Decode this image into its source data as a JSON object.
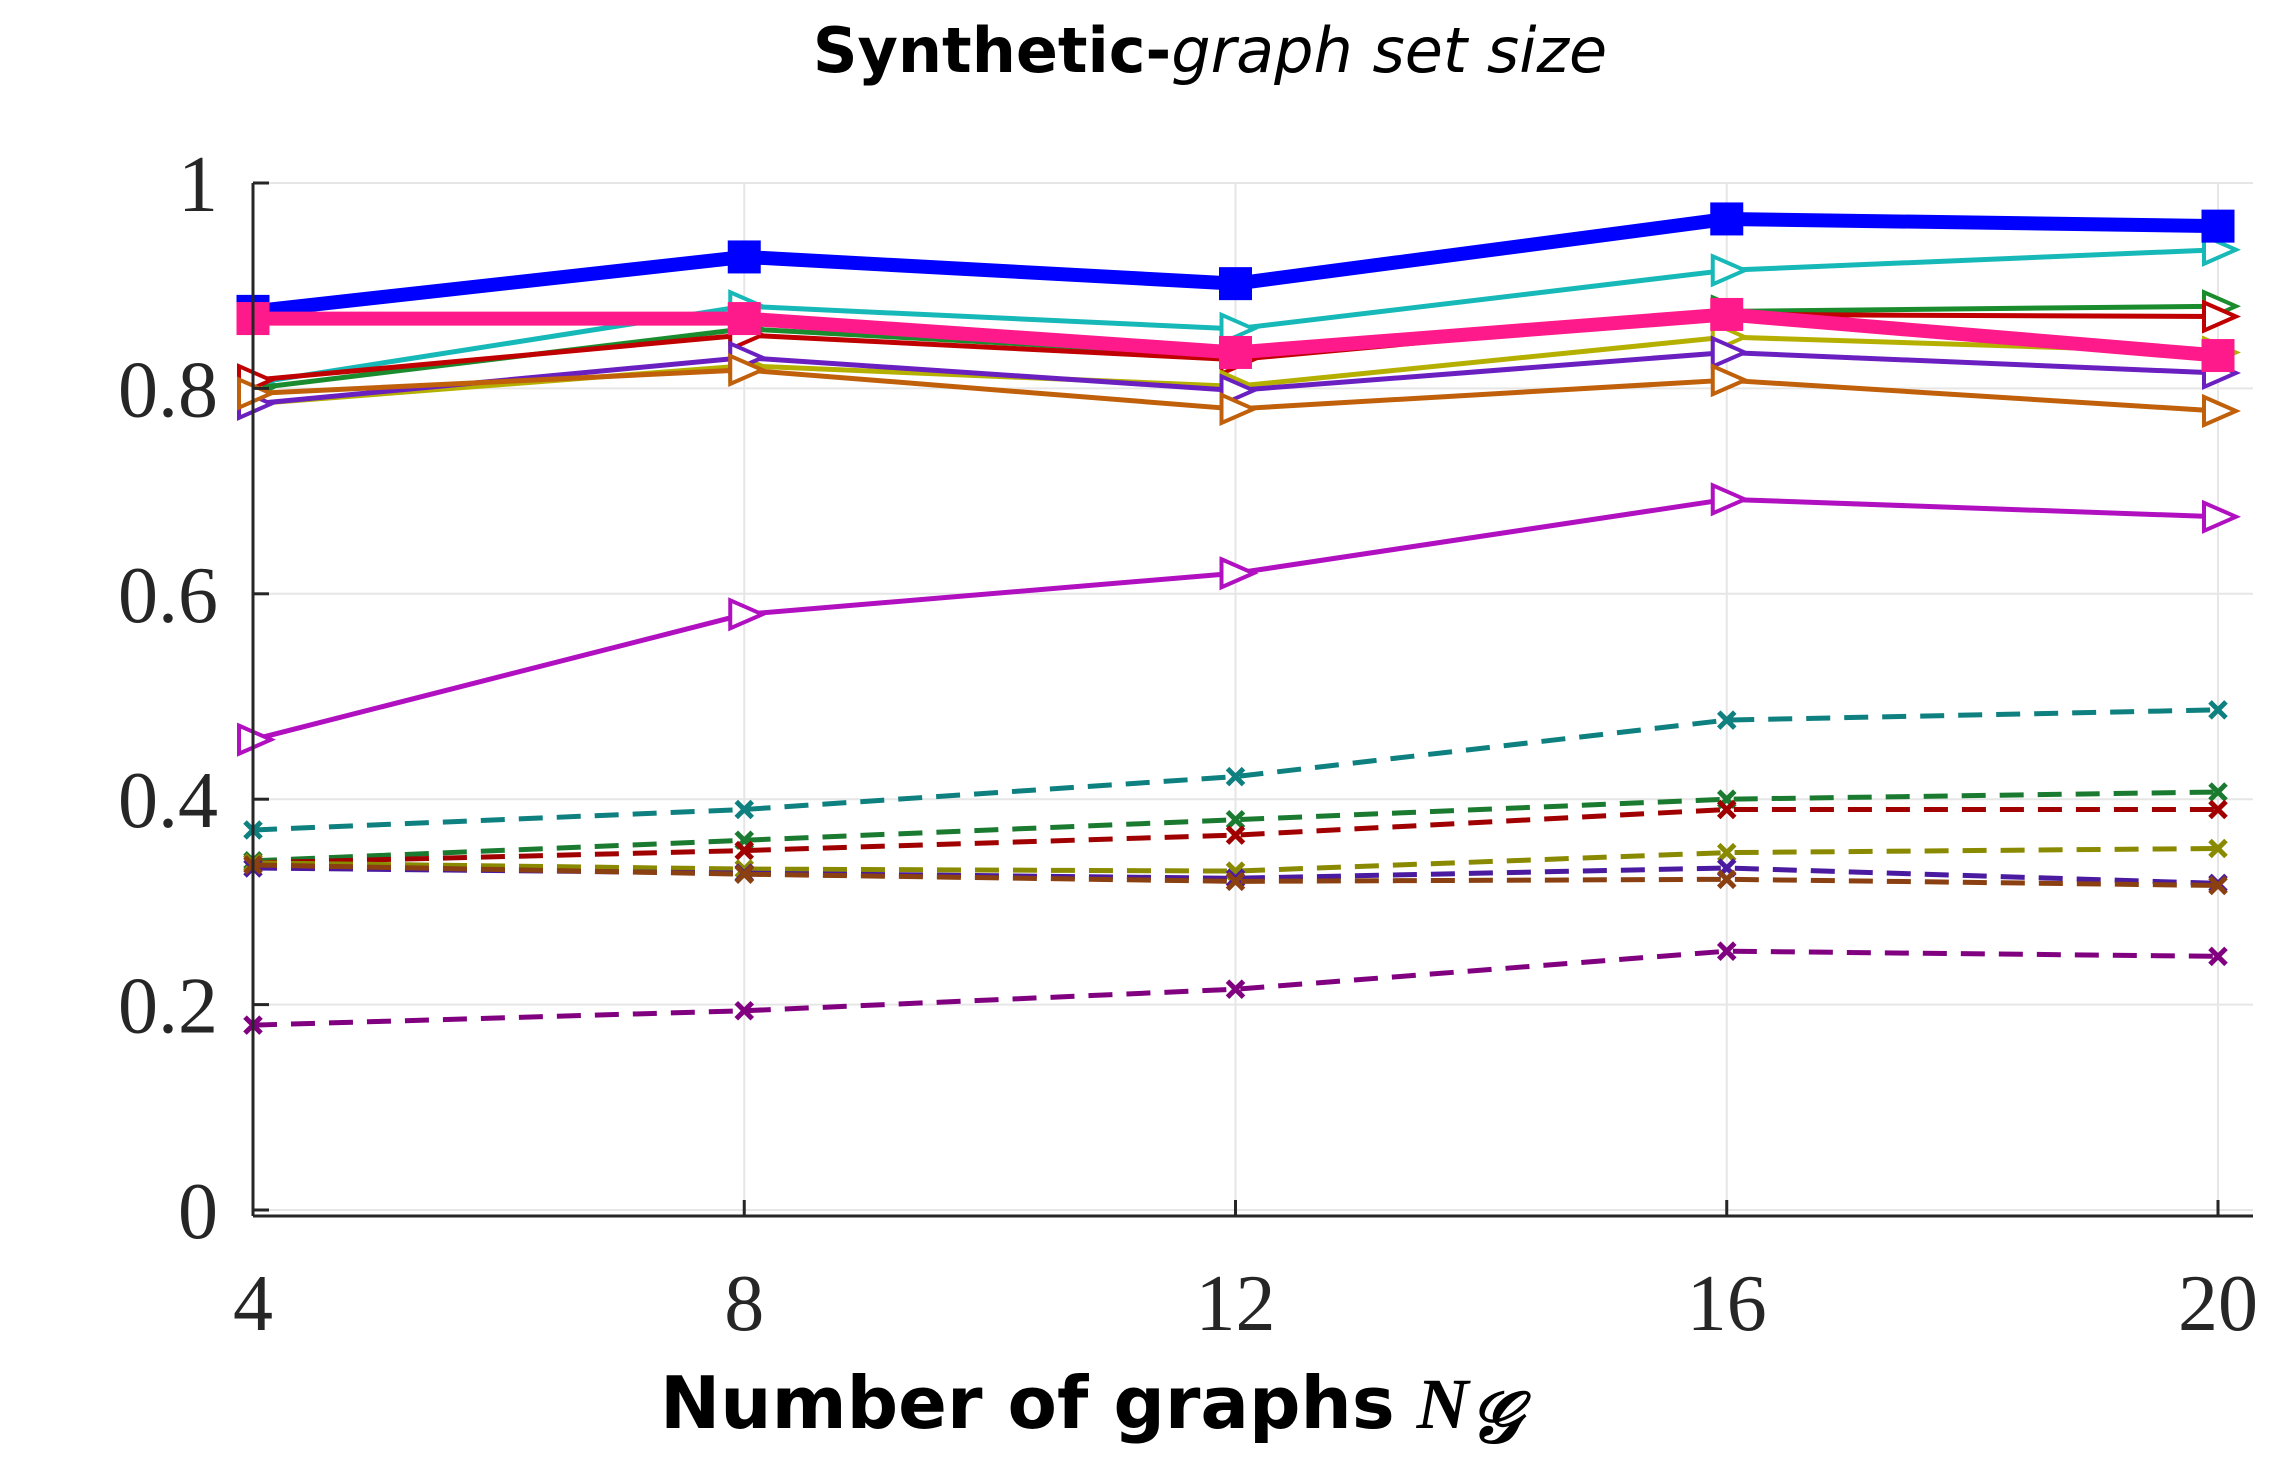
{
  "chart_data": {
    "type": "line",
    "title_bold": "Synthetic-",
    "title_italic": "graph set size",
    "xlabel": "Number of graphs",
    "xlabel_symbol": "N",
    "xlabel_subscript": "𝒢",
    "x": [
      4,
      8,
      12,
      16,
      20
    ],
    "xticks": [
      "4",
      "8",
      "12",
      "16",
      "20"
    ],
    "yticks": [
      "0",
      "0.2",
      "0.4",
      "0.6",
      "0.8",
      "1"
    ],
    "ytick_values": [
      0,
      0.2,
      0.4,
      0.6,
      0.8,
      1.0
    ],
    "xlim": [
      4,
      20
    ],
    "ylim": [
      0,
      1.0
    ],
    "grid": true,
    "series": [
      {
        "name": "solid-blue",
        "style": "solid",
        "marker": "square",
        "color": "#0000ff",
        "width": "thick",
        "values": [
          0.875,
          0.928,
          0.902,
          0.965,
          0.958
        ]
      },
      {
        "name": "solid-cyan",
        "style": "solid",
        "marker": "triangle-right",
        "color": "#17b8b8",
        "width": "normal",
        "values": [
          0.805,
          0.88,
          0.858,
          0.915,
          0.935
        ]
      },
      {
        "name": "solid-green",
        "style": "solid",
        "marker": "triangle-right",
        "color": "#1a8c2e",
        "width": "normal",
        "values": [
          0.8,
          0.858,
          0.832,
          0.875,
          0.88
        ]
      },
      {
        "name": "solid-darkred",
        "style": "solid",
        "marker": "triangle-right",
        "color": "#c00000",
        "width": "normal",
        "values": [
          0.808,
          0.852,
          0.828,
          0.872,
          0.87
        ]
      },
      {
        "name": "solid-olive",
        "style": "solid",
        "marker": "triangle-right",
        "color": "#b5b000",
        "width": "normal",
        "values": [
          0.785,
          0.822,
          0.802,
          0.85,
          0.835
        ]
      },
      {
        "name": "solid-purple",
        "style": "solid",
        "marker": "triangle-right",
        "color": "#6a1fc0",
        "width": "normal",
        "values": [
          0.785,
          0.83,
          0.798,
          0.835,
          0.815
        ]
      },
      {
        "name": "solid-orange",
        "style": "solid",
        "marker": "triangle-right",
        "color": "#c0600a",
        "width": "normal",
        "values": [
          0.795,
          0.818,
          0.78,
          0.808,
          0.778
        ]
      },
      {
        "name": "solid-pink",
        "style": "solid",
        "marker": "square",
        "color": "#ff1a8c",
        "width": "thick",
        "values": [
          0.868,
          0.868,
          0.835,
          0.872,
          0.832
        ]
      },
      {
        "name": "solid-magenta",
        "style": "solid",
        "marker": "triangle-right",
        "color": "#b010c0",
        "width": "normal",
        "values": [
          0.458,
          0.58,
          0.62,
          0.692,
          0.675
        ]
      },
      {
        "name": "dashed-teal",
        "style": "dashed",
        "marker": "x",
        "color": "#0e8080",
        "width": "normal",
        "values": [
          0.37,
          0.39,
          0.422,
          0.477,
          0.487
        ]
      },
      {
        "name": "dashed-green",
        "style": "dashed",
        "marker": "x",
        "color": "#1a7a30",
        "width": "normal",
        "values": [
          0.34,
          0.36,
          0.38,
          0.4,
          0.407
        ]
      },
      {
        "name": "dashed-red",
        "style": "dashed",
        "marker": "x",
        "color": "#a00000",
        "width": "normal",
        "values": [
          0.338,
          0.35,
          0.365,
          0.39,
          0.39
        ]
      },
      {
        "name": "dashed-olive",
        "style": "dashed",
        "marker": "x",
        "color": "#8a8a00",
        "width": "normal",
        "values": [
          0.338,
          0.332,
          0.33,
          0.348,
          0.352
        ]
      },
      {
        "name": "dashed-purple",
        "style": "dashed",
        "marker": "x",
        "color": "#4a1aa0",
        "width": "normal",
        "values": [
          0.333,
          0.328,
          0.323,
          0.333,
          0.318
        ]
      },
      {
        "name": "dashed-brown",
        "style": "dashed",
        "marker": "x",
        "color": "#8a4010",
        "width": "normal",
        "values": [
          0.336,
          0.327,
          0.32,
          0.322,
          0.316
        ]
      },
      {
        "name": "dashed-violet",
        "style": "dashed",
        "marker": "x",
        "color": "#800080",
        "width": "normal",
        "values": [
          0.18,
          0.194,
          0.215,
          0.252,
          0.247
        ]
      }
    ]
  }
}
